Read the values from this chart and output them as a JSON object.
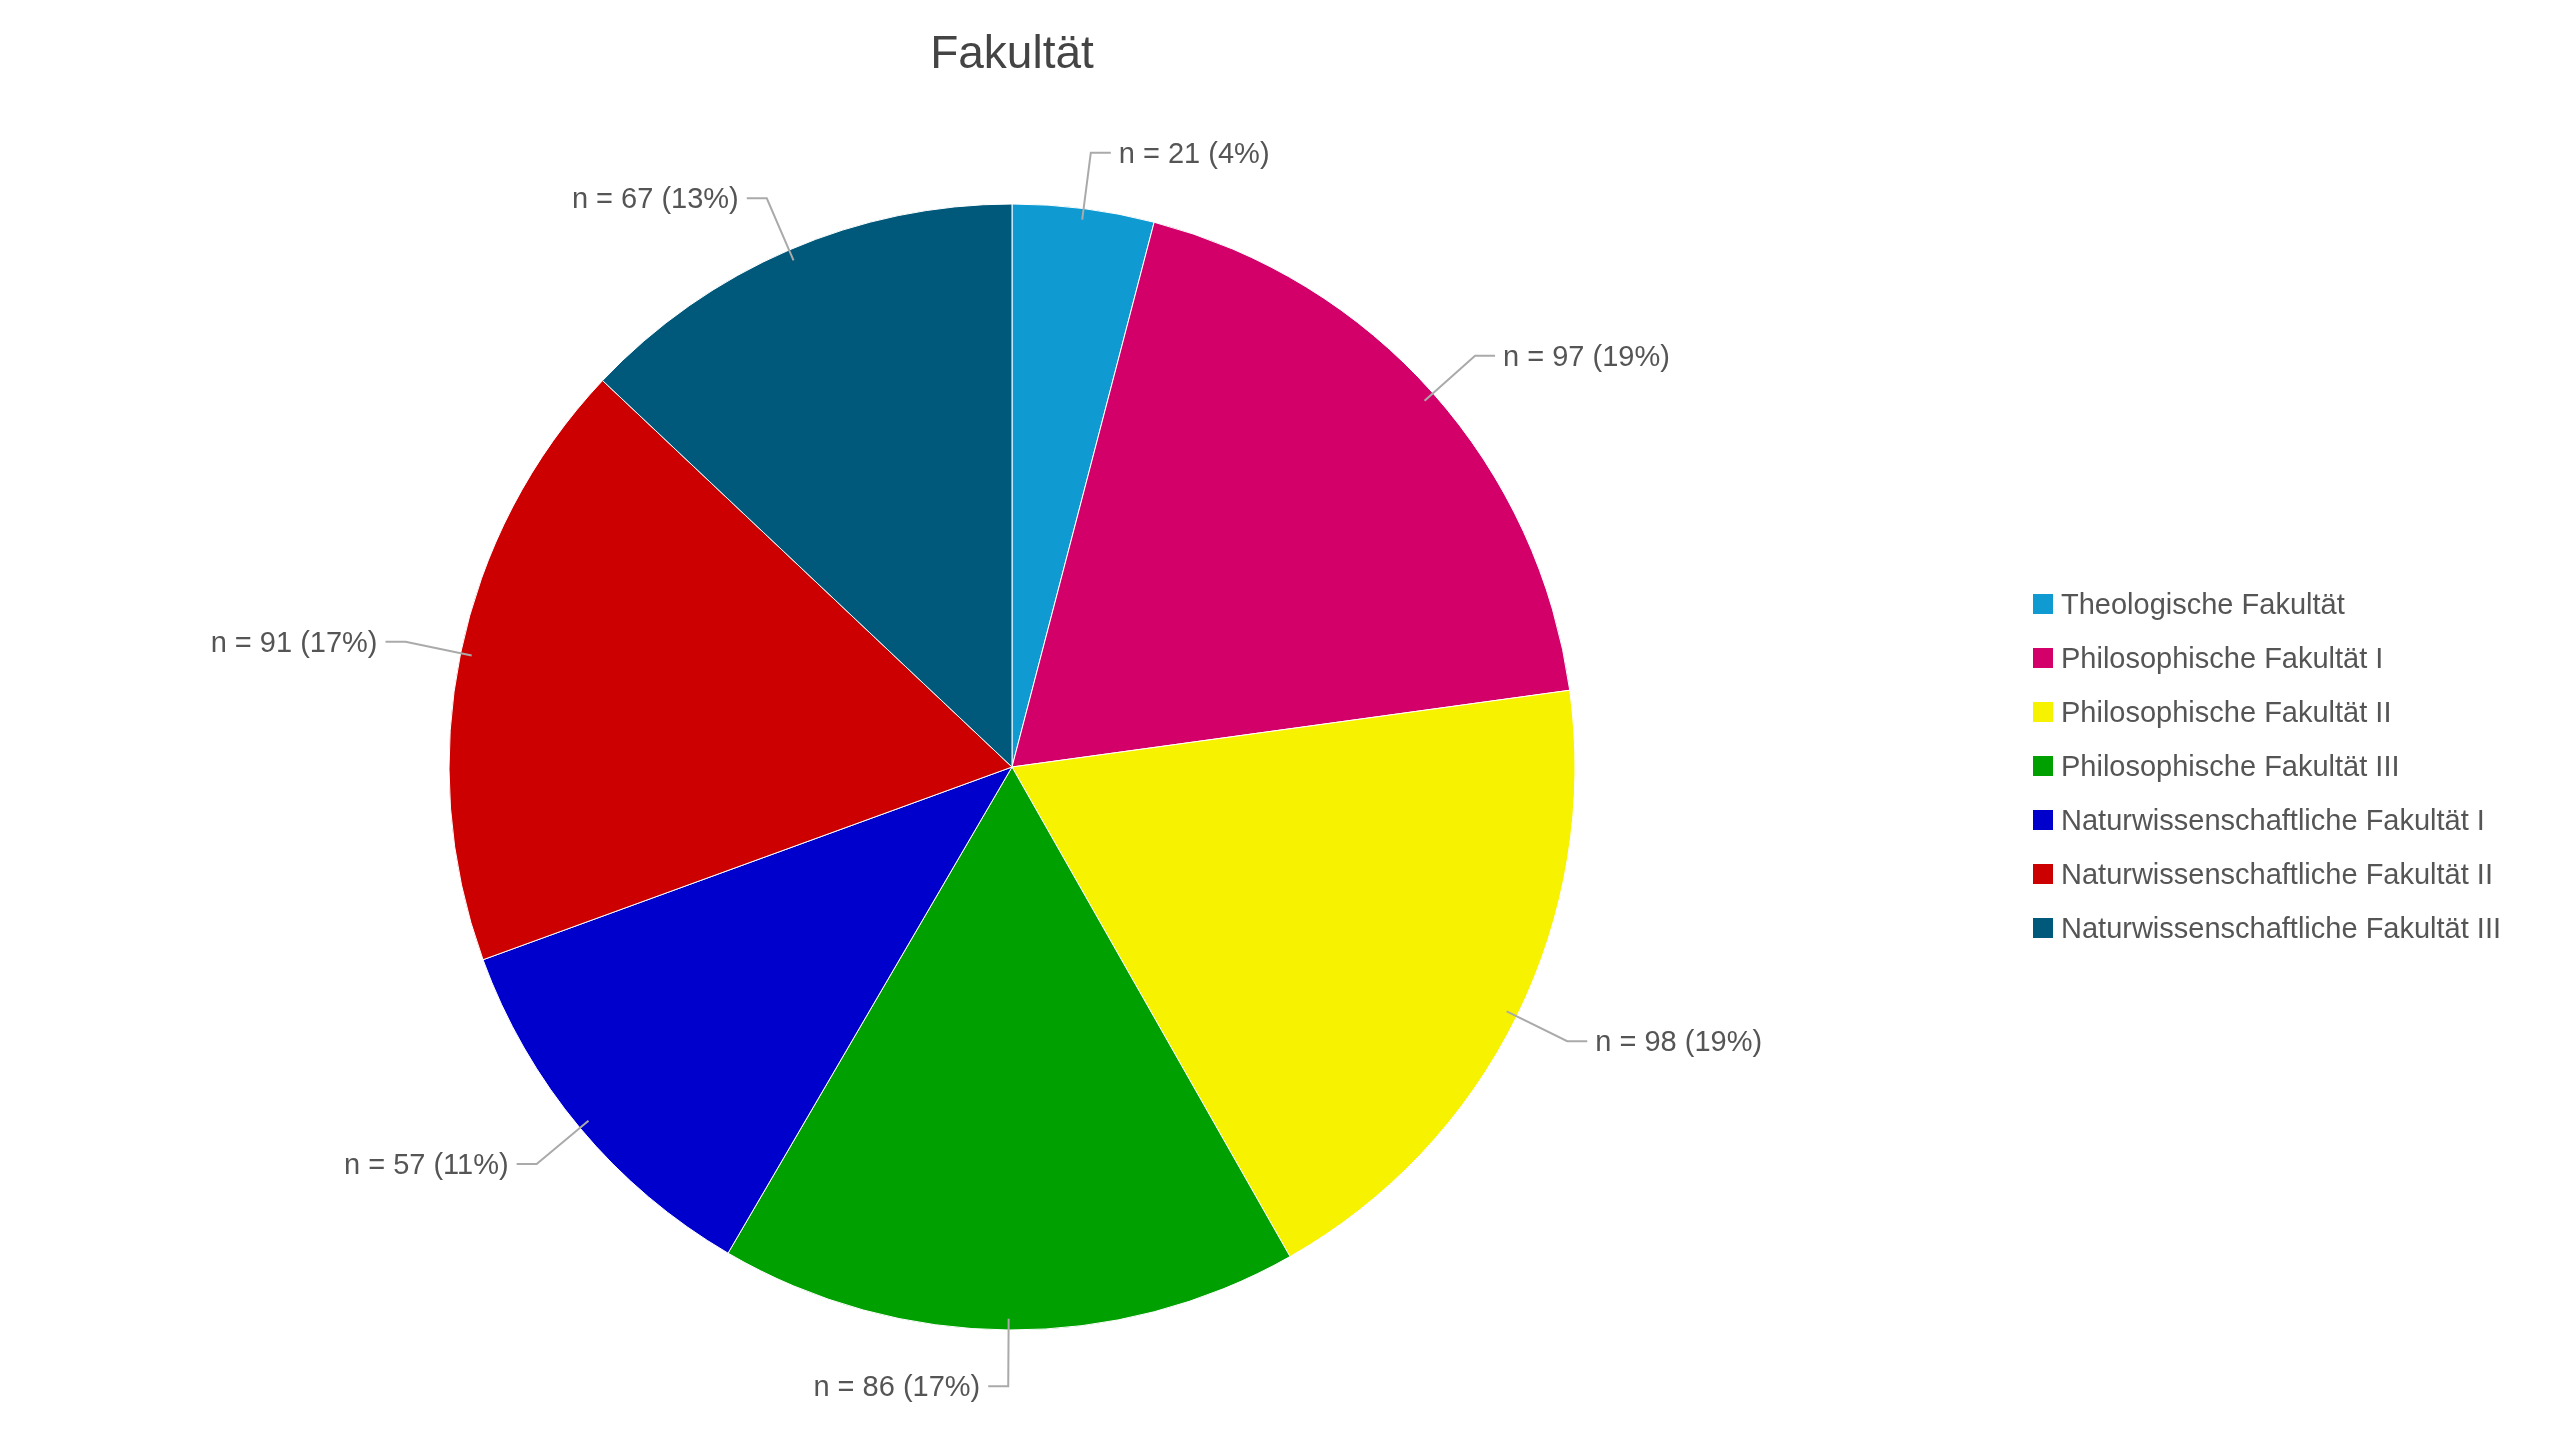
{
  "chart_data": {
    "type": "pie",
    "title": "Fakultät",
    "categories": [
      "Theologische Fakultät",
      "Philosophische Fakultät I",
      "Philosophische Fakultät II",
      "Philosophische Fakultät III",
      "Naturwissenschaftliche Fakultät I",
      "Naturwissenschaftliche Fakultät II",
      "Naturwissenschaftliche Fakultät III"
    ],
    "values": [
      21,
      97,
      98,
      86,
      57,
      91,
      67
    ],
    "value_labels": [
      "n = 21 (4%)",
      "n = 97 (19%)",
      "n = 98 (19%)",
      "n = 86 (17%)",
      "n = 57 (11%)",
      "n = 91 (17%)",
      "n = 67 (13%)"
    ],
    "colors": [
      "#0f9bd2",
      "#d3006a",
      "#f7f200",
      "#00a000",
      "#0000cc",
      "#cc0000",
      "#00587a"
    ],
    "legend": "right"
  }
}
